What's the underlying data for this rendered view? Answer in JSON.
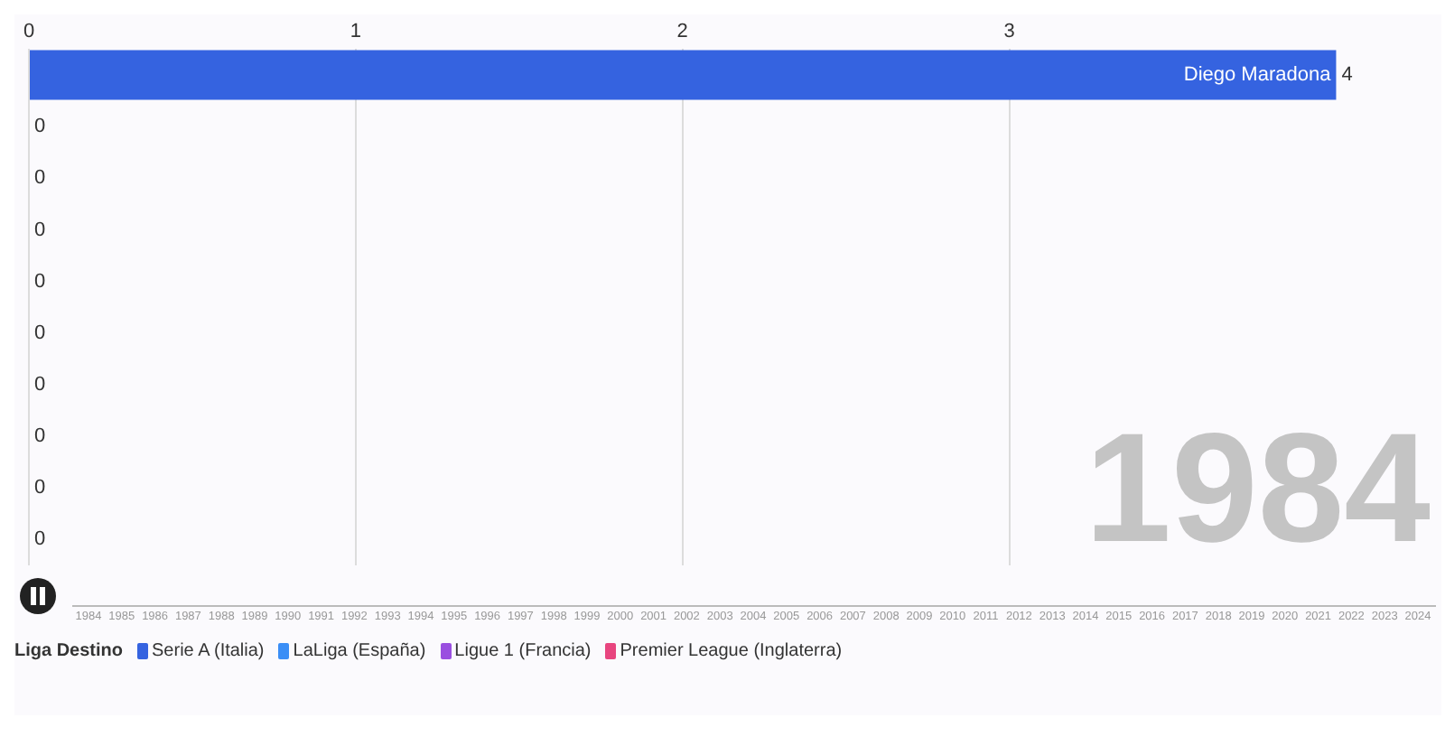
{
  "chart_data": {
    "type": "bar",
    "orientation": "horizontal",
    "stacked": true,
    "categories": [
      "Diego Maradona",
      null,
      null,
      null,
      null,
      null,
      null,
      null,
      null,
      null
    ],
    "series": [
      {
        "name": "Serie A (Italia)",
        "color": "#3563e0",
        "values": [
          4,
          0,
          0,
          0,
          0,
          0,
          0,
          0,
          0,
          0
        ]
      },
      {
        "name": "LaLiga (España)",
        "color": "#3a8ef6",
        "values": [
          null,
          null,
          null,
          null,
          null,
          null,
          null,
          null,
          null,
          null
        ]
      },
      {
        "name": "Ligue 1 (Francia)",
        "color": "#9a4fe0",
        "values": [
          null,
          null,
          null,
          null,
          null,
          null,
          null,
          null,
          null,
          null
        ]
      },
      {
        "name": "Premier League (Inglaterra)",
        "color": "#e8457f",
        "values": [
          null,
          null,
          null,
          null,
          null,
          null,
          null,
          null,
          null,
          null
        ]
      }
    ],
    "xlim": [
      0,
      4.3
    ],
    "xticks": [
      0,
      1,
      2,
      3
    ],
    "grid": "x",
    "data_labels": true,
    "legend": "bottom",
    "legend_title": "Liga Destino",
    "annotations": [
      "1984",
      "1984",
      "1985",
      "1986",
      "1987",
      "1988",
      "1989",
      "1990",
      "1991",
      "1992",
      "1993",
      "1994",
      "1995",
      "1996",
      "1997",
      "1998",
      "1999",
      "2000",
      "2001",
      "2002",
      "2003",
      "2004",
      "2005",
      "2006",
      "2007",
      "2008",
      "2009",
      "2010",
      "2011",
      "2012",
      "2013",
      "2014",
      "2015",
      "2016",
      "2017",
      "2018",
      "2019",
      "2020",
      "2021",
      "2022",
      "2023",
      "2024"
    ]
  }
}
